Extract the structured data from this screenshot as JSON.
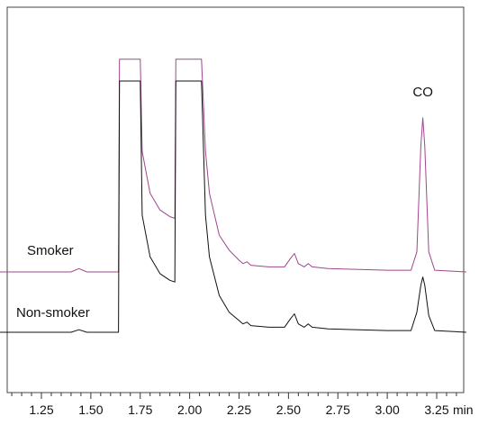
{
  "chart_data": {
    "type": "line",
    "xlabel": "min",
    "xlim": [
      1.0,
      3.4
    ],
    "ylim": [
      -25,
      150
    ],
    "x_ticks": [
      1.25,
      1.5,
      1.75,
      2.0,
      2.25,
      2.5,
      2.75,
      3.0,
      3.25
    ],
    "x_tick_labels": [
      "1.25",
      "1.50",
      "1.75",
      "2.00",
      "2.25",
      "2.50",
      "2.75",
      "3.00",
      "3.25"
    ],
    "x_minor_step": 0.05,
    "y_axis_shown": false,
    "grid": false,
    "annotations": [
      {
        "text": "CO",
        "x": 3.18,
        "y": 130
      }
    ],
    "series": [
      {
        "name": "Smoker",
        "color": "#a0468c",
        "baseline": 23,
        "x": [
          1.0,
          1.4,
          1.44,
          1.48,
          1.6,
          1.64,
          1.645,
          1.655,
          1.7,
          1.73,
          1.75,
          1.76,
          1.8,
          1.85,
          1.9,
          1.925,
          1.93,
          1.94,
          2.0,
          2.05,
          2.06,
          2.08,
          2.1,
          2.15,
          2.2,
          2.25,
          2.27,
          2.29,
          2.31,
          2.4,
          2.48,
          2.51,
          2.53,
          2.55,
          2.58,
          2.6,
          2.62,
          2.7,
          3.0,
          3.12,
          3.15,
          3.17,
          3.18,
          3.19,
          3.21,
          3.24,
          3.4
        ],
        "y": [
          23,
          23,
          25,
          23,
          23,
          23,
          150,
          150,
          150,
          150,
          150,
          95,
          70,
          60,
          56,
          55,
          150,
          150,
          150,
          150,
          150,
          95,
          70,
          45,
          36,
          30,
          28,
          29,
          27,
          26,
          26,
          31,
          34,
          28,
          26,
          28,
          26,
          25,
          24,
          24,
          35,
          98,
          115,
          98,
          35,
          24,
          23
        ]
      },
      {
        "name": "Non-smoker",
        "color": "#111111",
        "baseline": 0,
        "x": [
          1.0,
          1.4,
          1.44,
          1.48,
          1.6,
          1.64,
          1.645,
          1.655,
          1.7,
          1.73,
          1.75,
          1.76,
          1.8,
          1.85,
          1.9,
          1.925,
          1.93,
          1.94,
          2.0,
          2.05,
          2.06,
          2.08,
          2.1,
          2.15,
          2.2,
          2.25,
          2.27,
          2.29,
          2.31,
          2.4,
          2.48,
          2.51,
          2.53,
          2.55,
          2.58,
          2.6,
          2.62,
          2.7,
          3.0,
          3.12,
          3.15,
          3.17,
          3.18,
          3.19,
          3.21,
          3.24,
          3.4
        ],
        "y": [
          0,
          0,
          1.5,
          0,
          0,
          0,
          150,
          150,
          150,
          150,
          150,
          70,
          45,
          35,
          31,
          30,
          150,
          150,
          150,
          150,
          150,
          70,
          45,
          22,
          12,
          7,
          5,
          6,
          4,
          3,
          3,
          8,
          11,
          5,
          3,
          5,
          3,
          2,
          1,
          1,
          12,
          28,
          33,
          28,
          10,
          1,
          0
        ]
      }
    ]
  }
}
